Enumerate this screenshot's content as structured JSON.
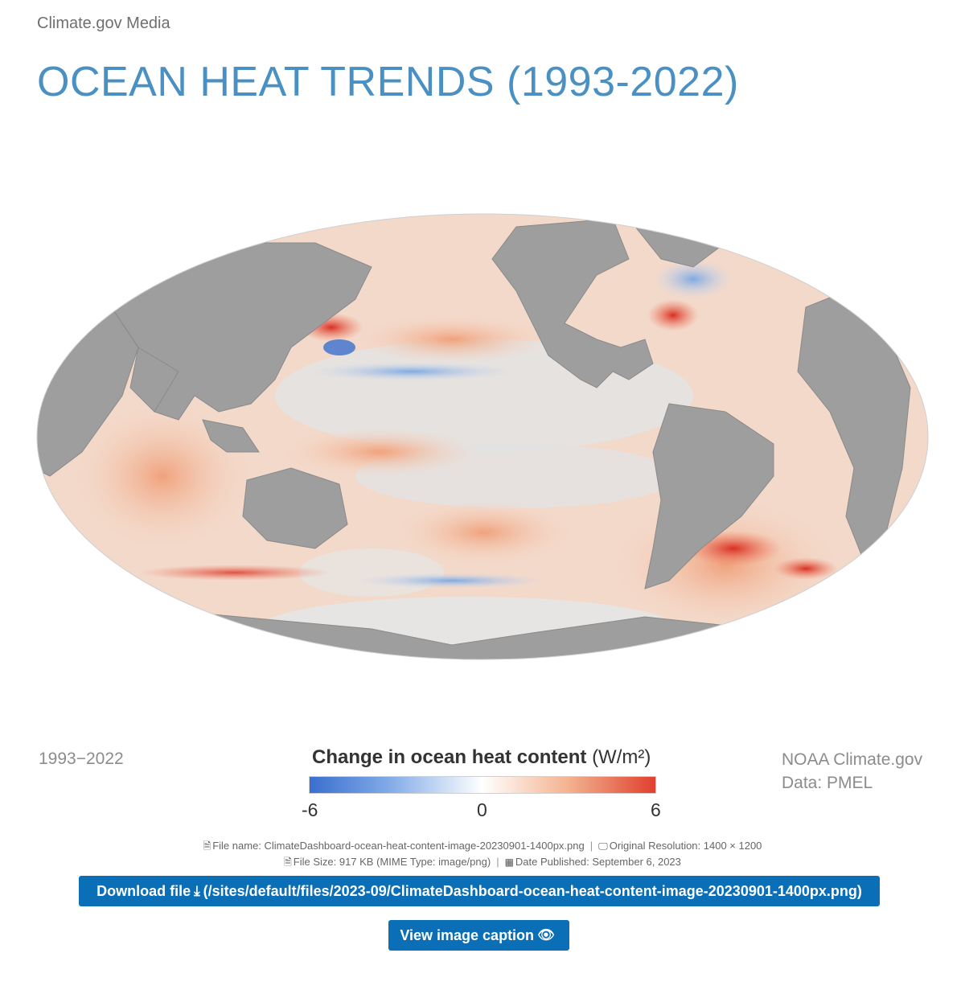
{
  "header": {
    "site_name": "Climate.gov Media",
    "title": "OCEAN HEAT TRENDS (1993-2022)"
  },
  "map": {
    "year_range": "1993−2022",
    "credit_line1": "NOAA Climate.gov",
    "credit_line2": "Data: PMEL",
    "legend": {
      "title": "Change in ocean heat content",
      "unit": "(W/m²)",
      "min_label": "-6",
      "mid_label": "0",
      "max_label": "6",
      "colors": {
        "negative": "#3a6fcf",
        "neutral": "#ffffff",
        "positive": "#e0402e",
        "land": "#9e9e9e"
      }
    }
  },
  "file_info": {
    "file_name_label": "File name: ClimateDashboard-ocean-heat-content-image-20230901-1400px.png",
    "resolution_label": "Original Resolution: 1400 × 1200",
    "file_size_label": "File Size: 917 KB (MIME Type: image/png)",
    "date_label": "Date Published: September 6, 2023",
    "icons": [
      "file-icon",
      "monitor-icon",
      "file-icon",
      "calendar-icon"
    ]
  },
  "actions": {
    "download_label": "Download file",
    "download_path": "(/sites/default/files/2023-09/ClimateDashboard-ocean-heat-content-image-20230901-1400px.png)",
    "caption_label": "View image caption",
    "accent": "#0b6fb8"
  }
}
